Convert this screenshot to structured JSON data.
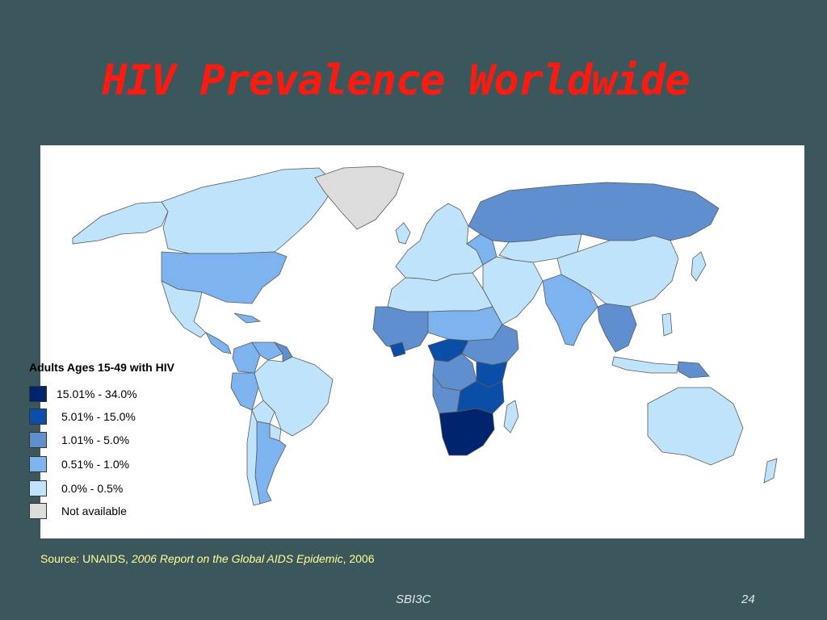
{
  "slide": {
    "title": "HIV Prevalence Worldwide",
    "footer_code": "SBI3C",
    "slide_number": "24"
  },
  "source": {
    "prefix": "Source: UNAIDS, ",
    "publication": "2006 Report on the Global AIDS Epidemic",
    "suffix": ", 2006"
  },
  "legend": {
    "title": "Adults Ages 15-49 with HIV",
    "items": [
      {
        "label": "15.01% - 34.0%",
        "color": "#00256e"
      },
      {
        "label": "5.01% - 15.0%",
        "color": "#0a4ea8"
      },
      {
        "label": "1.01% - 5.0%",
        "color": "#5f8fcf"
      },
      {
        "label": "0.51% - 1.0%",
        "color": "#7db3ee"
      },
      {
        "label": "0.0% - 0.5%",
        "color": "#bfe3fa"
      },
      {
        "label": "Not available",
        "color": "#dcdcdc"
      }
    ]
  },
  "map": {
    "ocean_color": "#ffffff",
    "regions": [
      {
        "name": "Canada",
        "class": "0.0% - 0.5%"
      },
      {
        "name": "Alaska",
        "class": "0.0% - 0.5%"
      },
      {
        "name": "Greenland",
        "class": "Not available"
      },
      {
        "name": "United States",
        "class": "0.51% - 1.0%"
      },
      {
        "name": "Mexico",
        "class": "0.0% - 0.5%"
      },
      {
        "name": "Central America",
        "class": "0.51% - 1.0%"
      },
      {
        "name": "Colombia",
        "class": "0.51% - 1.0%"
      },
      {
        "name": "Venezuela",
        "class": "0.51% - 1.0%"
      },
      {
        "name": "Guyana",
        "class": "1.01% - 5.0%"
      },
      {
        "name": "Peru",
        "class": "0.51% - 1.0%"
      },
      {
        "name": "Brazil",
        "class": "0.0% - 0.5%"
      },
      {
        "name": "Bolivia",
        "class": "0.0% - 0.5%"
      },
      {
        "name": "Paraguay",
        "class": "0.0% - 0.5%"
      },
      {
        "name": "Argentina",
        "class": "0.51% - 1.0%"
      },
      {
        "name": "Chile",
        "class": "0.0% - 0.5%"
      },
      {
        "name": "Europe",
        "class": "0.0% - 0.5%"
      },
      {
        "name": "Eastern Europe",
        "class": "0.51% - 1.0%"
      },
      {
        "name": "Russia",
        "class": "1.01% - 5.0%"
      },
      {
        "name": "North Africa",
        "class": "0.0% - 0.5%"
      },
      {
        "name": "Middle East",
        "class": "0.0% - 0.5%"
      },
      {
        "name": "Central Asia",
        "class": "0.0% - 0.5%"
      },
      {
        "name": "China",
        "class": "0.0% - 0.5%"
      },
      {
        "name": "India",
        "class": "0.51% - 1.0%"
      },
      {
        "name": "Southeast Asia",
        "class": "1.01% - 5.0%"
      },
      {
        "name": "West Africa",
        "class": "1.01% - 5.0%"
      },
      {
        "name": "Sahel",
        "class": "0.51% - 1.0%"
      },
      {
        "name": "Ivory Coast",
        "class": "5.01% - 15.0%"
      },
      {
        "name": "Central Africa",
        "class": "5.01% - 15.0%"
      },
      {
        "name": "DR Congo",
        "class": "1.01% - 5.0%"
      },
      {
        "name": "East Africa",
        "class": "1.01% - 5.0%"
      },
      {
        "name": "Tanzania",
        "class": "5.01% - 15.0%"
      },
      {
        "name": "Angola",
        "class": "1.01% - 5.0%"
      },
      {
        "name": "Zambia Malawi Mozambique",
        "class": "5.01% - 15.0%"
      },
      {
        "name": "Southern Africa",
        "class": "15.01% - 34.0%"
      },
      {
        "name": "Madagascar",
        "class": "0.0% - 0.5%"
      },
      {
        "name": "Indonesia",
        "class": "0.0% - 0.5%"
      },
      {
        "name": "Papua New Guinea",
        "class": "1.01% - 5.0%"
      },
      {
        "name": "Australia",
        "class": "0.0% - 0.5%"
      },
      {
        "name": "New Zealand",
        "class": "0.0% - 0.5%"
      },
      {
        "name": "Japan",
        "class": "0.0% - 0.5%"
      }
    ]
  }
}
